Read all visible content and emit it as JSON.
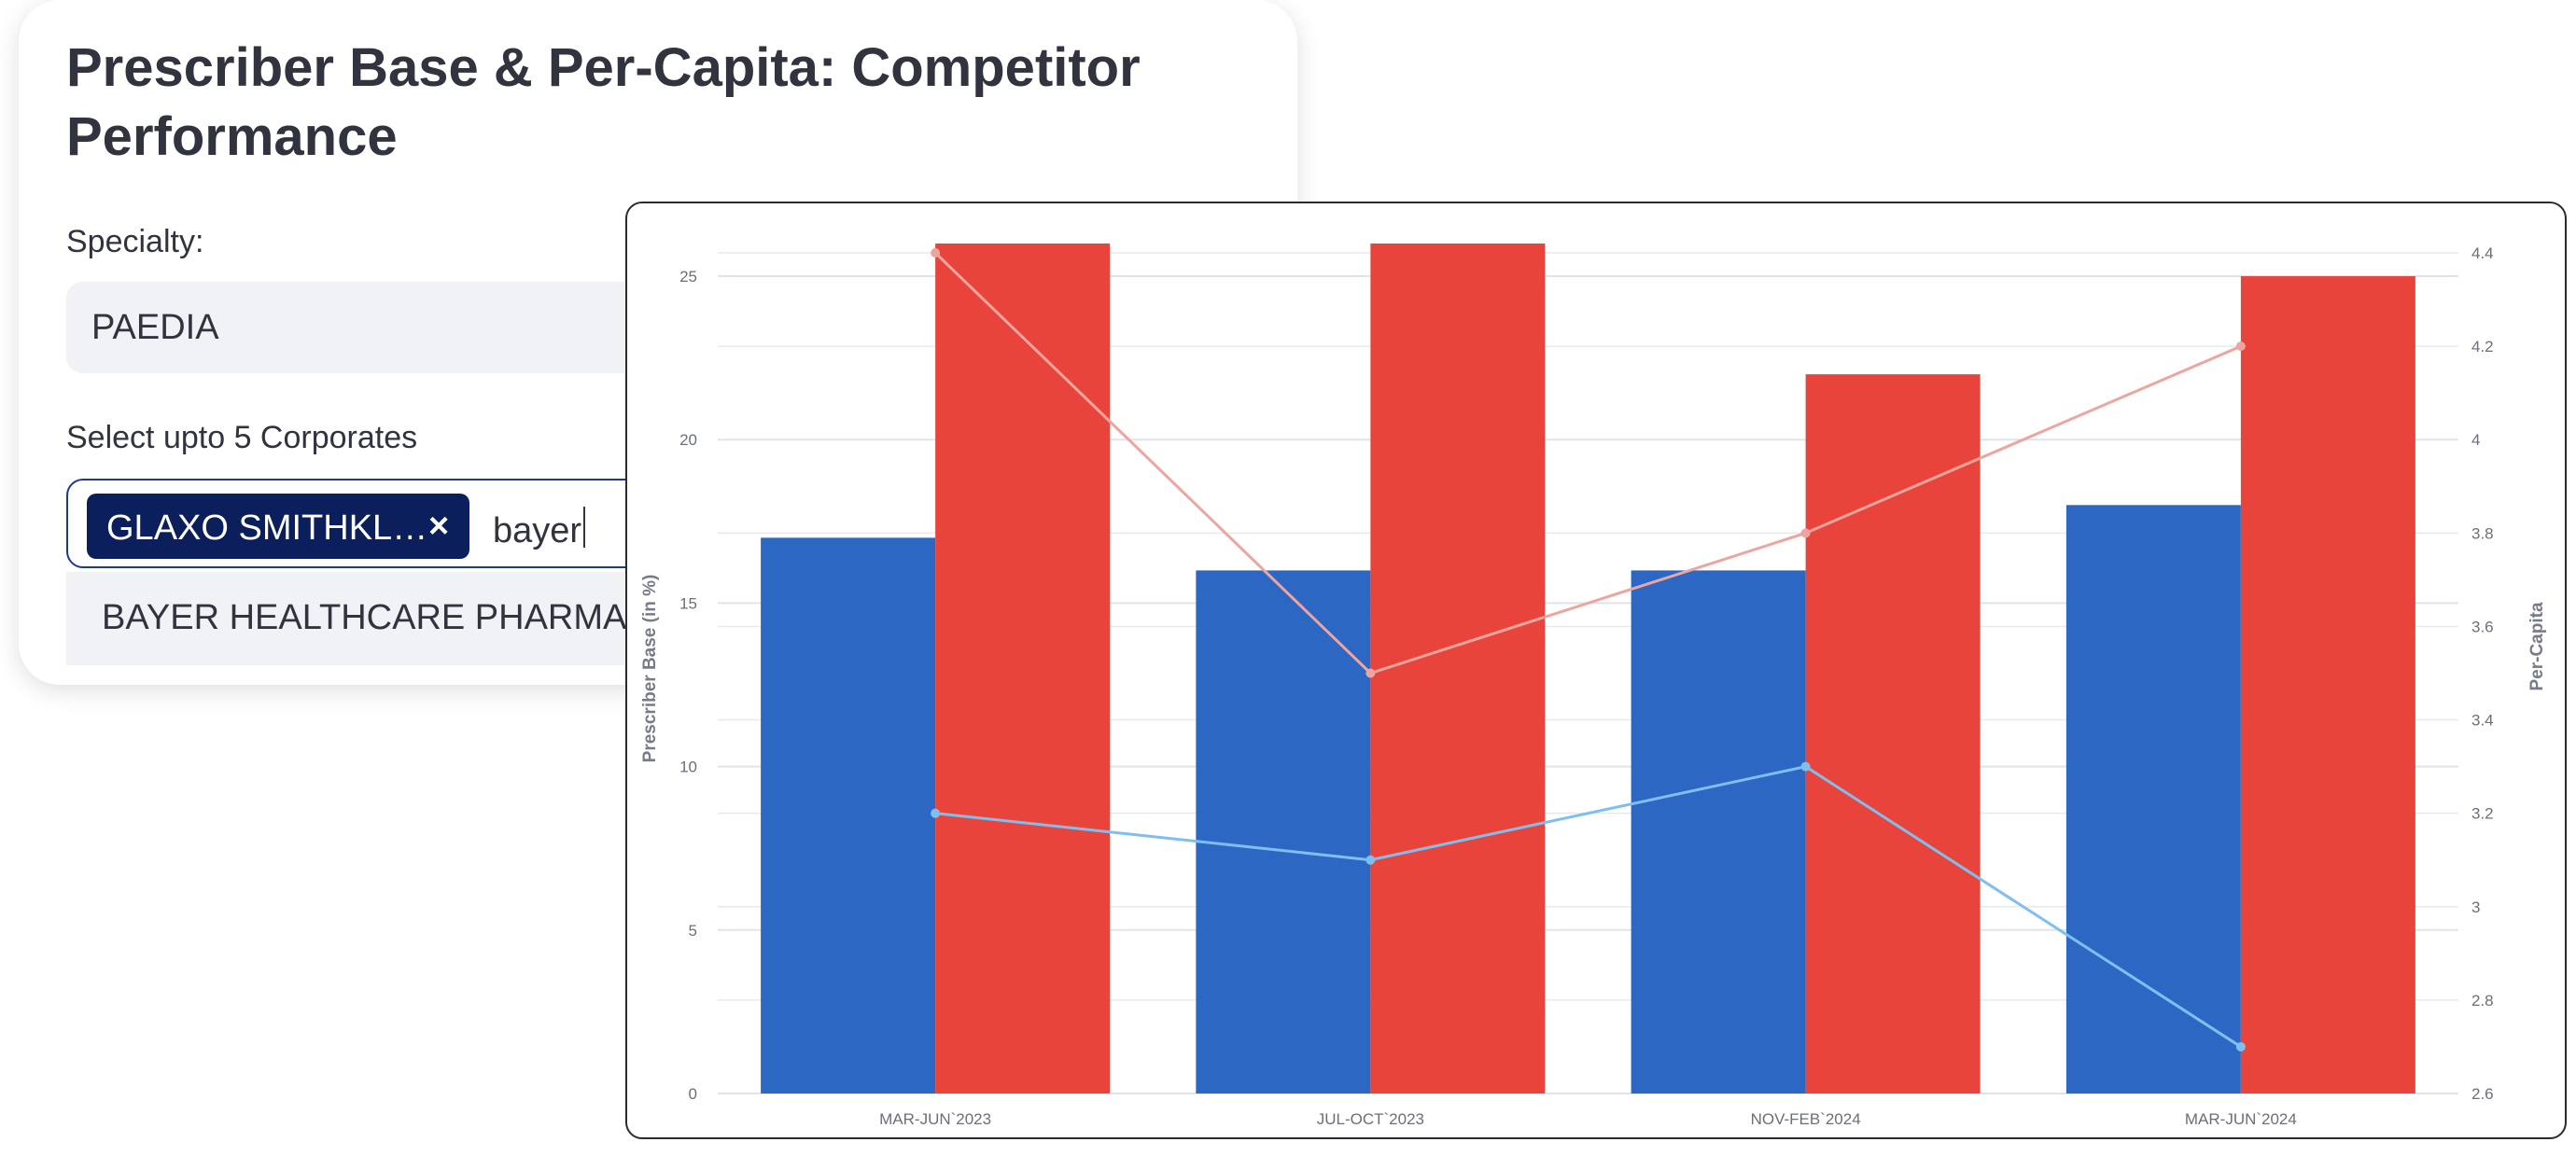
{
  "header": {
    "title": "Prescriber Base & Per-Capita: Competitor Performance"
  },
  "filters": {
    "specialty_label": "Specialty:",
    "specialty_value": "PAEDIA",
    "corporates_label": "Select upto 5 Corporates",
    "selected_chip": "GLAXO SMITHKL…",
    "chip_close": "×",
    "search_text": "bayer",
    "dropdown_option": "BAYER HEALTHCARE PHARMA LLC"
  },
  "colors": {
    "blue_bar": "#2d67c4",
    "red_bar": "#e9443b",
    "blue_line": "#7fbff0",
    "red_line": "#eda5a0",
    "chip": "#0b1f5c"
  },
  "chart_data": {
    "type": "bar",
    "categories": [
      "MAR-JUN`2023",
      "JUL-OCT`2023",
      "NOV-FEB`2024",
      "MAR-JUN`2024"
    ],
    "series": [
      {
        "kind": "bar",
        "axis": "left",
        "color": "#2d67c4",
        "values": [
          17,
          16,
          16,
          18
        ]
      },
      {
        "kind": "bar",
        "axis": "left",
        "color": "#e9443b",
        "values": [
          26,
          26,
          22,
          25
        ]
      },
      {
        "kind": "line",
        "axis": "right",
        "color": "#eda5a0",
        "values": [
          4.4,
          3.5,
          3.8,
          4.2
        ]
      },
      {
        "kind": "line",
        "axis": "right",
        "color": "#7fbff0",
        "values": [
          3.2,
          3.1,
          3.3,
          2.7
        ]
      }
    ],
    "ylabel": "Prescriber Base (in %)",
    "y2label": "Per-Capita",
    "ylim": [
      0,
      26
    ],
    "y2lim": [
      2.6,
      4.42
    ],
    "yticks": [
      "0",
      "5",
      "10",
      "15",
      "20",
      "25"
    ],
    "y2ticks": [
      "2.6",
      "2.8",
      "3",
      "3.2",
      "3.4",
      "3.6",
      "3.8",
      "4",
      "4.2",
      "4.4"
    ],
    "grid": true,
    "legend": "none"
  }
}
